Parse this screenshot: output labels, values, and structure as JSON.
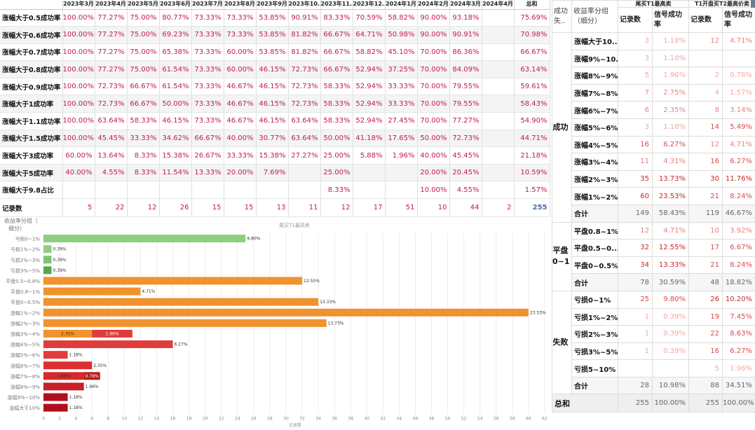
{
  "top_table": {
    "corner": "",
    "columns": [
      "2023年3月",
      "2023年4月",
      "2023年5月",
      "2023年6月",
      "2023年7月",
      "2023年8月",
      "2023年9月",
      "2023年10..",
      "2023年11..",
      "2023年12..",
      "2024年1月",
      "2024年2月",
      "2024年3月",
      "2024年4月",
      "总和"
    ],
    "rows": [
      {
        "label": "涨幅大于0.5成功率",
        "values": [
          "100.00%",
          "77.27%",
          "75.00%",
          "80.77%",
          "73.33%",
          "73.33%",
          "53.85%",
          "90.91%",
          "83.33%",
          "70.59%",
          "58.82%",
          "90.00%",
          "93.18%",
          "",
          "75.69%"
        ]
      },
      {
        "label": "涨幅大于0.6成功率",
        "values": [
          "100.00%",
          "77.27%",
          "75.00%",
          "69.23%",
          "73.33%",
          "73.33%",
          "53.85%",
          "81.82%",
          "66.67%",
          "64.71%",
          "50.98%",
          "90.00%",
          "90.91%",
          "",
          "70.98%"
        ]
      },
      {
        "label": "涨幅大于0.7成功率",
        "values": [
          "100.00%",
          "77.27%",
          "75.00%",
          "65.38%",
          "73.33%",
          "60.00%",
          "53.85%",
          "81.82%",
          "66.67%",
          "58.82%",
          "45.10%",
          "70.00%",
          "86.36%",
          "",
          "66.67%"
        ]
      },
      {
        "label": "涨幅大于0.8成功率",
        "values": [
          "100.00%",
          "77.27%",
          "75.00%",
          "61.54%",
          "73.33%",
          "60.00%",
          "46.15%",
          "72.73%",
          "66.67%",
          "52.94%",
          "37.25%",
          "70.00%",
          "84.09%",
          "",
          "63.14%"
        ]
      },
      {
        "label": "涨幅大于0.9成功率",
        "values": [
          "100.00%",
          "72.73%",
          "66.67%",
          "61.54%",
          "73.33%",
          "46.67%",
          "46.15%",
          "72.73%",
          "58.33%",
          "52.94%",
          "33.33%",
          "70.00%",
          "79.55%",
          "",
          "59.61%"
        ]
      },
      {
        "label": "涨幅大于1成功率",
        "values": [
          "100.00%",
          "72.73%",
          "66.67%",
          "50.00%",
          "73.33%",
          "46.67%",
          "46.15%",
          "72.73%",
          "58.33%",
          "52.94%",
          "33.33%",
          "70.00%",
          "79.55%",
          "",
          "58.43%"
        ]
      },
      {
        "label": "涨幅大于1.1成功率",
        "values": [
          "100.00%",
          "63.64%",
          "58.33%",
          "46.15%",
          "73.33%",
          "46.67%",
          "46.15%",
          "63.64%",
          "58.33%",
          "52.94%",
          "27.45%",
          "70.00%",
          "77.27%",
          "",
          "54.90%"
        ]
      },
      {
        "label": "涨幅大于1.5成功率",
        "values": [
          "100.00%",
          "45.45%",
          "33.33%",
          "34.62%",
          "66.67%",
          "40.00%",
          "30.77%",
          "63.64%",
          "50.00%",
          "41.18%",
          "17.65%",
          "50.00%",
          "72.73%",
          "",
          "44.71%"
        ]
      },
      {
        "label": "涨幅大于3成功率",
        "values": [
          "60.00%",
          "13.64%",
          "8.33%",
          "15.38%",
          "26.67%",
          "33.33%",
          "15.38%",
          "27.27%",
          "25.00%",
          "5.88%",
          "1.96%",
          "40.00%",
          "45.45%",
          "",
          "21.18%"
        ]
      },
      {
        "label": "涨幅大于5成功率",
        "values": [
          "40.00%",
          "4.55%",
          "8.33%",
          "11.54%",
          "13.33%",
          "20.00%",
          "7.69%",
          "",
          "25.00%",
          "",
          "",
          "20.00%",
          "20.45%",
          "",
          "10.59%"
        ]
      },
      {
        "label": "涨幅大于9.8占比",
        "values": [
          "",
          "",
          "",
          "",
          "",
          "",
          "",
          "",
          "8.33%",
          "",
          "",
          "10.00%",
          "4.55%",
          "",
          "1.57%"
        ]
      }
    ],
    "count_row": {
      "label": "记录数",
      "values": [
        "5",
        "22",
        "12",
        "26",
        "15",
        "15",
        "13",
        "11",
        "12",
        "17",
        "51",
        "10",
        "44",
        "2",
        "255"
      ]
    }
  },
  "bar_chart": {
    "header_label_line1": "收益率分组（",
    "header_label_line2": "细分）",
    "title": "尾买T1最高卖",
    "xlabel": "记录数"
  },
  "chart_data": {
    "type": "bar",
    "orientation": "horizontal",
    "title": "尾买T1最高卖",
    "xlabel": "记录数",
    "ylabel": "收益率分组（细分）",
    "xlim": [
      0,
      62
    ],
    "xticks": [
      0,
      2,
      4,
      6,
      8,
      10,
      12,
      14,
      16,
      18,
      20,
      22,
      24,
      26,
      28,
      30,
      32,
      34,
      36,
      38,
      40,
      42,
      44,
      46,
      48,
      50,
      52,
      54,
      56,
      58,
      60,
      62
    ],
    "bars": [
      {
        "category": "亏损0~1%",
        "segments": [
          {
            "value": 25,
            "label": "9.80%",
            "color": "#8fce7d"
          }
        ]
      },
      {
        "category": "亏损1%~2%",
        "segments": [
          {
            "value": 1,
            "label": "0.39%",
            "color": "#8fce7d"
          }
        ]
      },
      {
        "category": "亏损2%~3%",
        "segments": [
          {
            "value": 1,
            "label": "0.39%",
            "color": "#7cc46d"
          }
        ]
      },
      {
        "category": "亏损3%~5%",
        "segments": [
          {
            "value": 1,
            "label": "0.39%",
            "color": "#5aa653"
          }
        ]
      },
      {
        "category": "平盘0.5~0.8%",
        "segments": [
          {
            "value": 32,
            "label": "12.55%",
            "color": "#f0922e"
          }
        ]
      },
      {
        "category": "平盘0.8~1%",
        "segments": [
          {
            "value": 12,
            "label": "4.71%",
            "color": "#f0922e"
          }
        ]
      },
      {
        "category": "平盘0~0.5%",
        "segments": [
          {
            "value": 34,
            "label": "13.33%",
            "color": "#f0922e"
          }
        ]
      },
      {
        "category": "涨幅1%~2%",
        "segments": [
          {
            "value": 60,
            "label": "23.53%",
            "color": "#f0922e"
          }
        ]
      },
      {
        "category": "涨幅2%~3%",
        "segments": [
          {
            "value": 35,
            "label": "13.73%",
            "color": "#f0922e"
          }
        ]
      },
      {
        "category": "涨幅3%~4%",
        "segments": [
          {
            "value": 6,
            "label": "2.35%",
            "color": "#f0922e"
          },
          {
            "value": 5,
            "label": "1.96%",
            "color": "#e03c3c"
          }
        ]
      },
      {
        "category": "涨幅4%~5%",
        "segments": [
          {
            "value": 16,
            "label": "6.27%",
            "color": "#e03c3c"
          }
        ]
      },
      {
        "category": "涨幅5%~6%",
        "segments": [
          {
            "value": 3,
            "label": "1.18%",
            "color": "#e03c3c"
          }
        ]
      },
      {
        "category": "涨幅6%~7%",
        "segments": [
          {
            "value": 6,
            "label": "2.35%",
            "color": "#dc3030"
          }
        ]
      },
      {
        "category": "涨幅7%~8%",
        "segments": [
          {
            "value": 5,
            "label": "1.96%",
            "color": "#d42a2a"
          },
          {
            "value": 2,
            "label": "0.78%",
            "color": "#b81c1c"
          }
        ]
      },
      {
        "category": "涨幅8%~9%",
        "segments": [
          {
            "value": 5,
            "label": "1.96%",
            "color": "#c81e28"
          }
        ]
      },
      {
        "category": "涨幅9%~10%",
        "segments": [
          {
            "value": 3,
            "label": "1.18%",
            "color": "#b0101c"
          }
        ]
      },
      {
        "category": "涨幅大于10%",
        "segments": [
          {
            "value": 3,
            "label": "1.18%",
            "color": "#b0101c"
          }
        ]
      }
    ]
  },
  "right_table": {
    "header_top": {
      "col1": "成功失..",
      "col2": "收益率分组（细分）",
      "group_a": "尾买T1最高卖",
      "group_b": "T1开盘买T2最高价卖"
    },
    "header_sub": {
      "count": "记录数",
      "rate": "信号成功率"
    },
    "groups": [
      {
        "name": "成功",
        "rows": [
          {
            "label": "涨幅大于10..",
            "a_count": "3",
            "a_rate": "1.18%",
            "b_count": "12",
            "b_rate": "4.71%"
          },
          {
            "label": "涨幅9%~10..",
            "a_count": "3",
            "a_rate": "1.18%",
            "b_count": "",
            "b_rate": ""
          },
          {
            "label": "涨幅8%~9%",
            "a_count": "5",
            "a_rate": "1.96%",
            "b_count": "2",
            "b_rate": "0.78%"
          },
          {
            "label": "涨幅7%~8%",
            "a_count": "7",
            "a_rate": "2.75%",
            "b_count": "4",
            "b_rate": "1.57%"
          },
          {
            "label": "涨幅6%~7%",
            "a_count": "6",
            "a_rate": "2.35%",
            "b_count": "8",
            "b_rate": "3.14%"
          },
          {
            "label": "涨幅5%~6%",
            "a_count": "3",
            "a_rate": "1.18%",
            "b_count": "14",
            "b_rate": "5.49%"
          },
          {
            "label": "涨幅4%~5%",
            "a_count": "16",
            "a_rate": "6.27%",
            "b_count": "12",
            "b_rate": "4.71%"
          },
          {
            "label": "涨幅3%~4%",
            "a_count": "11",
            "a_rate": "4.31%",
            "b_count": "16",
            "b_rate": "6.27%"
          },
          {
            "label": "涨幅2%~3%",
            "a_count": "35",
            "a_rate": "13.73%",
            "b_count": "30",
            "b_rate": "11.76%"
          },
          {
            "label": "涨幅1%~2%",
            "a_count": "60",
            "a_rate": "23.53%",
            "b_count": "21",
            "b_rate": "8.24%"
          }
        ],
        "subtotal": {
          "label": "合计",
          "a_count": "149",
          "a_rate": "58.43%",
          "b_count": "119",
          "b_rate": "46.67%"
        }
      },
      {
        "name": "平盘0~1",
        "rows": [
          {
            "label": "平盘0.8~1%",
            "a_count": "12",
            "a_rate": "4.71%",
            "b_count": "10",
            "b_rate": "3.92%"
          },
          {
            "label": "平盘0.5~0...",
            "a_count": "32",
            "a_rate": "12.55%",
            "b_count": "17",
            "b_rate": "6.67%"
          },
          {
            "label": "平盘0~0.5%",
            "a_count": "34",
            "a_rate": "13.33%",
            "b_count": "21",
            "b_rate": "8.24%"
          }
        ],
        "subtotal": {
          "label": "合计",
          "a_count": "78",
          "a_rate": "30.59%",
          "b_count": "48",
          "b_rate": "18.82%"
        }
      },
      {
        "name": "失败",
        "rows": [
          {
            "label": "亏损0~1%",
            "a_count": "25",
            "a_rate": "9.80%",
            "b_count": "26",
            "b_rate": "10.20%"
          },
          {
            "label": "亏损1%~2%",
            "a_count": "1",
            "a_rate": "0.39%",
            "b_count": "19",
            "b_rate": "7.45%"
          },
          {
            "label": "亏损2%~3%",
            "a_count": "1",
            "a_rate": "0.39%",
            "b_count": "22",
            "b_rate": "8.63%"
          },
          {
            "label": "亏损3%~5%",
            "a_count": "1",
            "a_rate": "0.39%",
            "b_count": "16",
            "b_rate": "6.27%"
          },
          {
            "label": "亏损5~10%",
            "a_count": "",
            "a_rate": "",
            "b_count": "5",
            "b_rate": "1.96%"
          }
        ],
        "subtotal": {
          "label": "合计",
          "a_count": "28",
          "a_rate": "10.98%",
          "b_count": "88",
          "b_rate": "34.51%"
        }
      }
    ],
    "grand_total": {
      "label": "总和",
      "a_count": "255",
      "a_rate": "100.00%",
      "b_count": "255",
      "b_rate": "100.00%"
    }
  }
}
